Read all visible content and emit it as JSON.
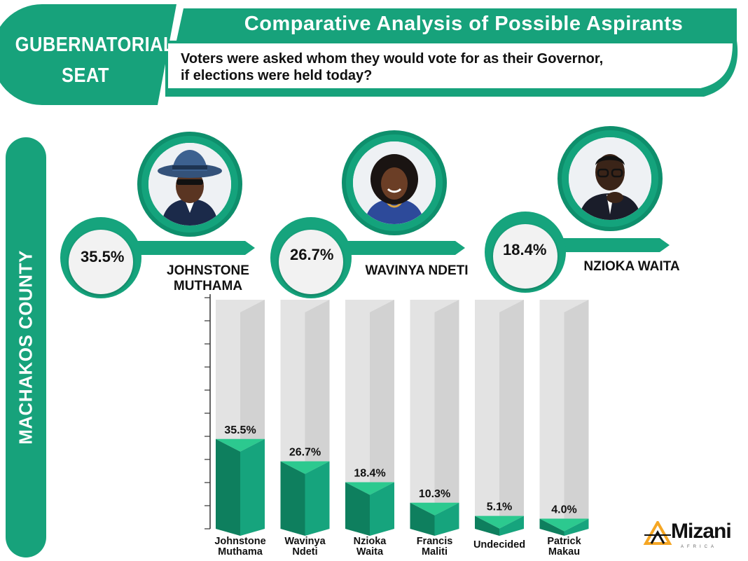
{
  "header": {
    "seat_title_line1": "GUBERNATORIAL",
    "seat_title_line2": "SEAT",
    "main_title": "Comparative Analysis of Possible Aspirants",
    "subtitle_line1": "Voters were asked whom they would vote for as their Governor,",
    "subtitle_line2": "if elections were held today?"
  },
  "side_label": "MACHAKOS COUNTY",
  "top_candidates": [
    {
      "pct": "35.5%",
      "name_line1": "JOHNSTONE",
      "name_line2": "MUTHAMA",
      "portrait_icon": "man-in-hat-portrait-icon"
    },
    {
      "pct": "26.7%",
      "name_line1": "WAVINYA NDETI",
      "name_line2": "",
      "portrait_icon": "woman-portrait-icon"
    },
    {
      "pct": "18.4%",
      "name_line1": "NZIOKA WAITA",
      "name_line2": "",
      "portrait_icon": "man-with-glasses-portrait-icon"
    }
  ],
  "colors": {
    "primary_green": "#16a47d",
    "dark_green": "#0e7f5e",
    "light_green": "#2cc98f",
    "bar_background": "#e2e2e2",
    "logo_orange": "#f5a623"
  },
  "chart_data": {
    "type": "bar",
    "categories": [
      [
        "Johnstone",
        "Muthama"
      ],
      [
        "Wavinya",
        "Ndeti"
      ],
      [
        "Nzioka",
        "Waita"
      ],
      [
        "Francis",
        "Maliti"
      ],
      [
        "Undecided"
      ],
      [
        "Patrick",
        "Makau"
      ]
    ],
    "values": [
      35.5,
      26.7,
      18.4,
      10.3,
      5.1,
      4.0
    ],
    "value_labels": [
      "35.5%",
      "26.7%",
      "18.4%",
      "10.3%",
      "5.1%",
      "4.0%"
    ],
    "title": "",
    "xlabel": "",
    "ylabel": "",
    "ylim": [
      0,
      90
    ],
    "grid": false,
    "legend": "none"
  },
  "logo": {
    "text": "Mizani",
    "subtext": "AFRICA",
    "icon": "mizani-scale-logo-icon"
  }
}
